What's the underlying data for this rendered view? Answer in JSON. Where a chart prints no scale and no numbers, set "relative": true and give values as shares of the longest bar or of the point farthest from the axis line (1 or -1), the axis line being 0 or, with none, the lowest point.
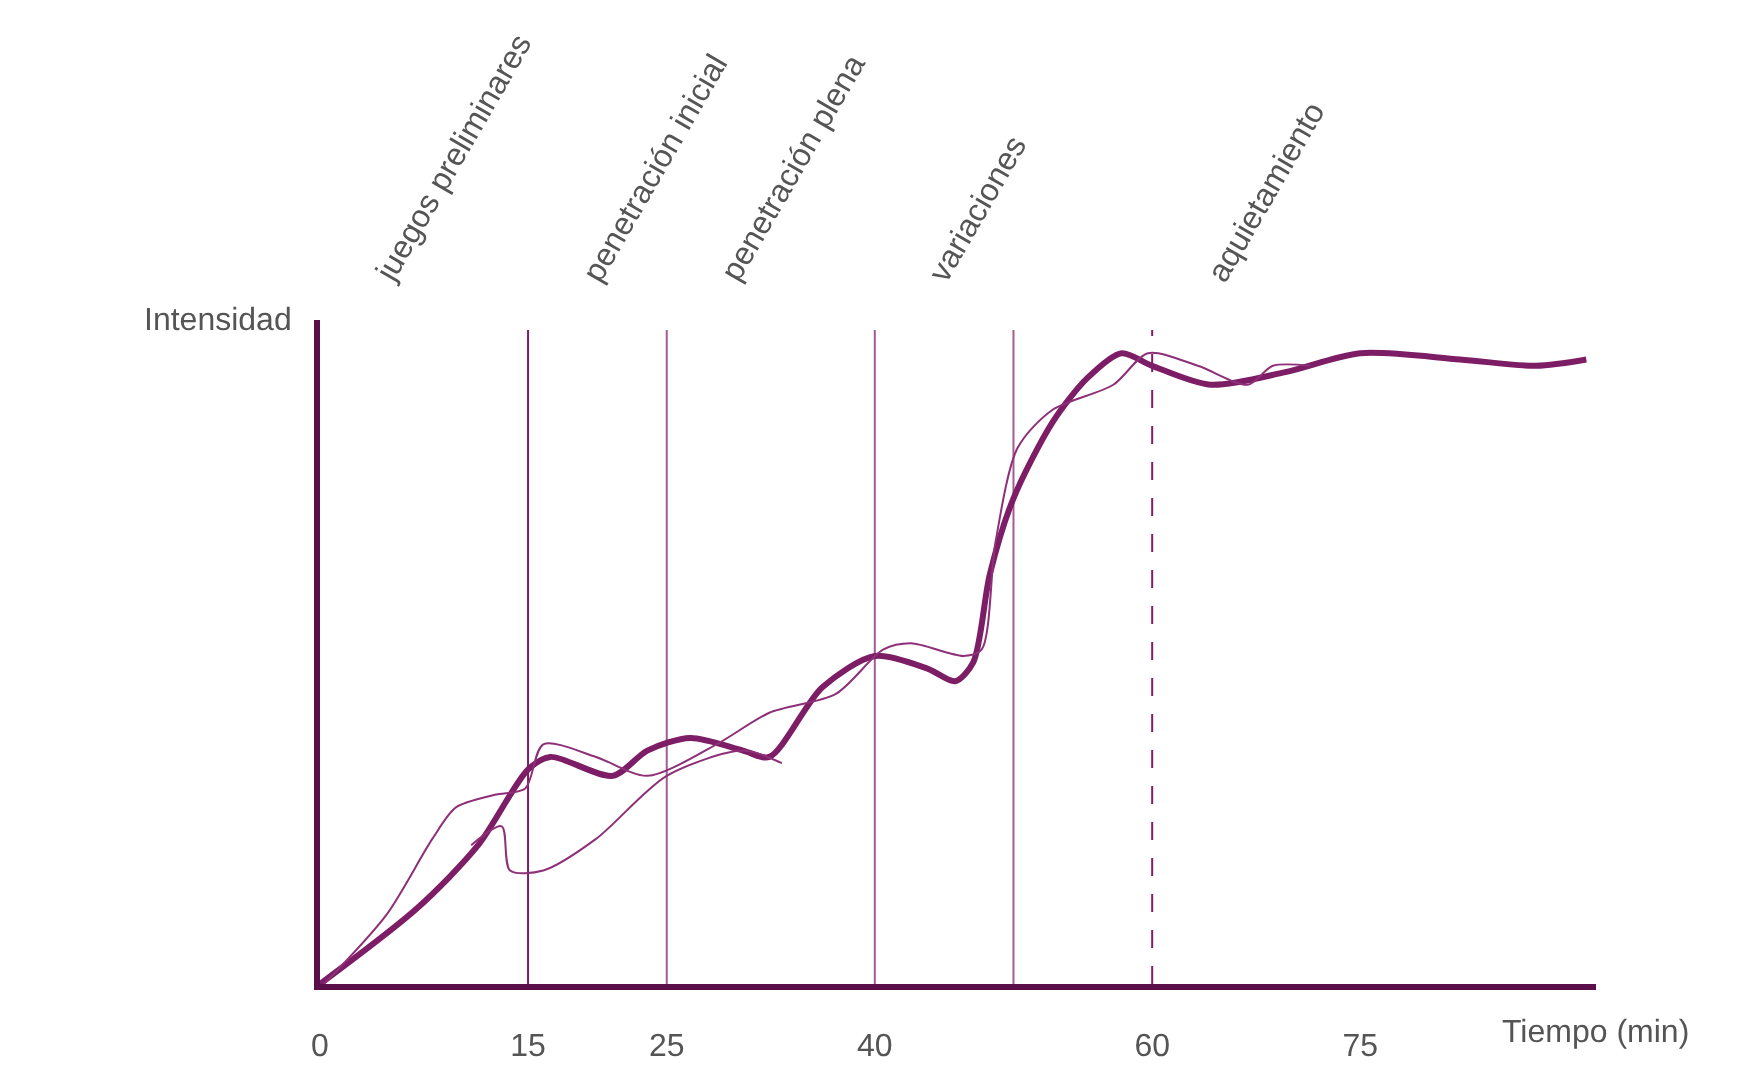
{
  "chart_data": {
    "type": "line",
    "relative": true,
    "xlabel": "Tiempo (min)",
    "xlim": [
      0,
      92
    ],
    "xticks": [
      0,
      15,
      25,
      40,
      60,
      75
    ],
    "grid": false,
    "marker": "none",
    "tick_labels": "x",
    "series": [
      {
        "color": "#7d1d66",
        "x": [
          0,
          7.0,
          11.4,
          15,
          16.6,
          21.1,
          23.6,
          26.7,
          30.5,
          32.4,
          36.2,
          40,
          43.8,
          45.8,
          47.1,
          48.3,
          50,
          52.8,
          55.3,
          57.8,
          60,
          64.2,
          69.6,
          75,
          82.2,
          87.7,
          91.3
        ],
        "values": [
          0,
          0.12,
          0.22,
          0.34,
          0.36,
          0.33,
          0.37,
          0.39,
          0.37,
          0.36,
          0.47,
          0.52,
          0.5,
          0.48,
          0.51,
          0.65,
          0.77,
          0.89,
          0.96,
          1.0,
          0.98,
          0.95,
          0.97,
          1.0,
          0.99,
          0.98,
          0.99
        ]
      },
      {
        "color": "#8e3078",
        "x": [
          0.3,
          4.8,
          8.1,
          9.8,
          12.6,
          14.8,
          16.1,
          19.9,
          23.6,
          28.6,
          32.4,
          37.2,
          40.6,
          42.6,
          46.4,
          47.7,
          48.7,
          50.3,
          52.8,
          57.2,
          59.7,
          63.3,
          66.9,
          68.7,
          71.4
        ],
        "values": [
          0,
          0.11,
          0.23,
          0.28,
          0.3,
          0.31,
          0.38,
          0.36,
          0.33,
          0.38,
          0.43,
          0.46,
          0.53,
          0.54,
          0.52,
          0.53,
          0.7,
          0.85,
          0.91,
          0.95,
          1.0,
          0.98,
          0.95,
          0.98,
          0.98
        ]
      },
      {
        "color": "#8e3078",
        "x": [
          10.9,
          13.1,
          13.7,
          16.1,
          19.9,
          25,
          30.5,
          33.3
        ],
        "values": [
          0.22,
          0.25,
          0.18,
          0.18,
          0.23,
          0.33,
          0.37,
          0.35
        ]
      }
    ],
    "ref_lines": [
      {
        "axis": "x",
        "value": 15,
        "color": "#7d1d66"
      },
      {
        "axis": "x",
        "value": 25,
        "color": "#a45a92"
      },
      {
        "axis": "x",
        "value": 40,
        "color": "#a45a92"
      },
      {
        "axis": "x",
        "value": 50,
        "color": "#a45a92"
      },
      {
        "axis": "x",
        "value": 60,
        "color": "#7d1d66",
        "line_style": "dashed"
      }
    ],
    "annotations": [
      "Intensidad",
      "juegos preliminares",
      "penetración inicial",
      "penetración plena",
      "variaciones",
      "aquietamiento"
    ]
  }
}
